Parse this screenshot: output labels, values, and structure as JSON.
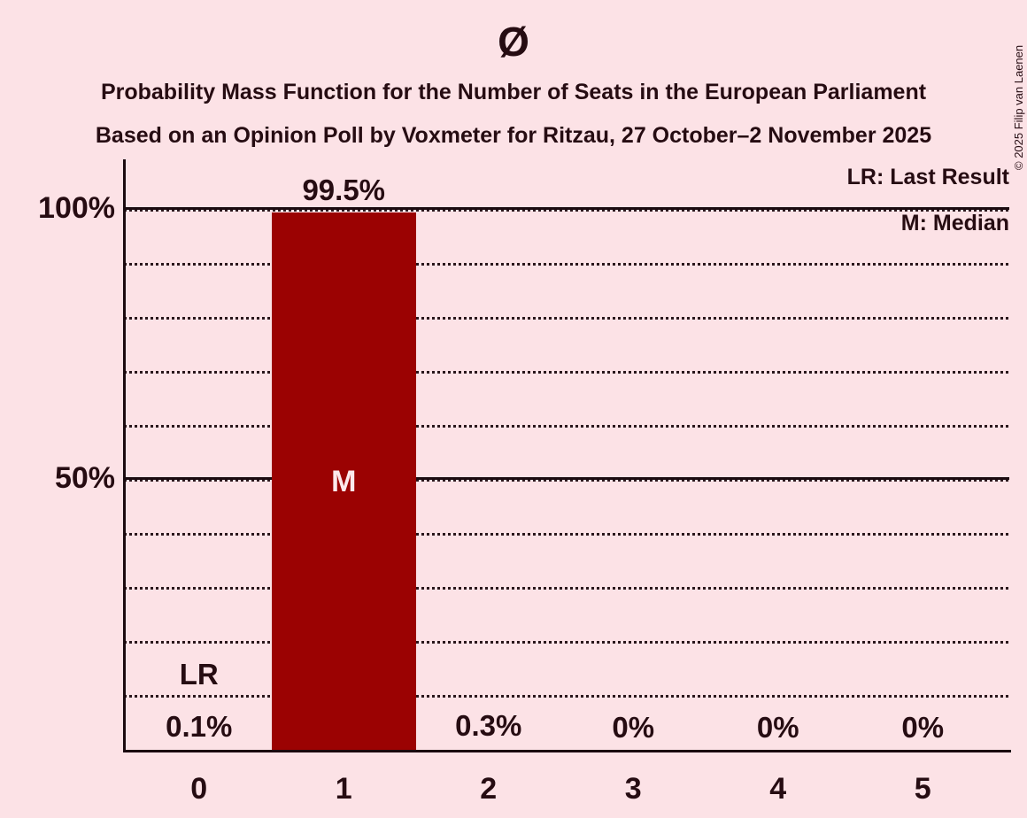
{
  "header": {
    "title": "Ø",
    "subtitle1": "Probability Mass Function for the Number of Seats in the European Parliament",
    "subtitle2": "Based on an Opinion Poll by Voxmeter for Ritzau, 27 October–2 November 2025"
  },
  "legend": {
    "lr_label": "LR: Last Result",
    "m_label": "M: Median"
  },
  "copyright": "© 2025 Filip van Laenen",
  "colors": {
    "background": "#fce2e6",
    "bar": "#9b0202",
    "text": "#260c12",
    "bar_marker_text": "#fce9ec",
    "axis": "#1b0a0f"
  },
  "chart_data": {
    "type": "bar",
    "title": "Ø",
    "subtitle": "Probability Mass Function for the Number of Seats in the European Parliament",
    "source_line": "Based on an Opinion Poll by Voxmeter for Ritzau, 27 October–2 November 2025",
    "categories": [
      "0",
      "1",
      "2",
      "3",
      "4",
      "5"
    ],
    "values": [
      0.1,
      99.5,
      0.3,
      0,
      0,
      0
    ],
    "value_labels": [
      "0.1%",
      "99.5%",
      "0.3%",
      "0%",
      "0%",
      "0%"
    ],
    "ylim": [
      0,
      100
    ],
    "ytick_labels": [
      {
        "pct": 100,
        "label": "100%"
      },
      {
        "pct": 50,
        "label": "50%"
      }
    ],
    "solid_line_pcts": [
      100,
      50
    ],
    "dotted_line_pcts": [
      10,
      20,
      30,
      40,
      50,
      60,
      70,
      80,
      90,
      100
    ],
    "grid": "horizontal dotted every 10%, solid at 50% and 100%",
    "legend_position": "top-right",
    "legend_entries": [
      "LR: Last Result",
      "M: Median"
    ],
    "annotations": {
      "last_result": {
        "category_index": 0,
        "marker": "LR"
      },
      "median": {
        "category_index": 1,
        "marker": "M"
      }
    }
  }
}
